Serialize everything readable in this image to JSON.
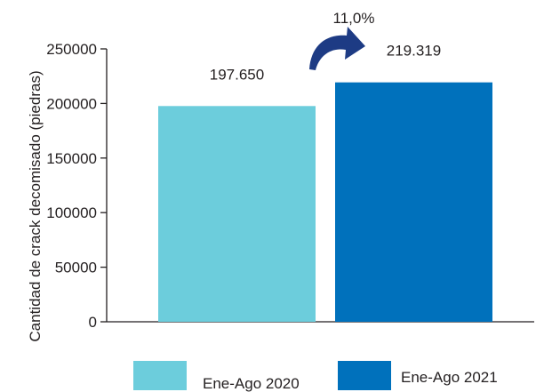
{
  "chart_data": {
    "type": "bar",
    "ylabel": "Cantidad de crack decomisado (piedras)",
    "ylim": [
      0,
      250000
    ],
    "yticks": [
      0,
      50000,
      100000,
      150000,
      200000,
      250000
    ],
    "grid": false,
    "legend_position": "bottom",
    "series": [
      {
        "name": "Ene-Ago 2020",
        "value": 197650,
        "value_label": "197.650",
        "color": "#6ccddc"
      },
      {
        "name": "Ene-Ago 2021",
        "value": 219319,
        "value_label": "219.319",
        "color": "#0071bc"
      }
    ],
    "annotation": {
      "text": "11,0%",
      "icon": "curved-arrow-icon",
      "color": "#1d3b84"
    }
  }
}
